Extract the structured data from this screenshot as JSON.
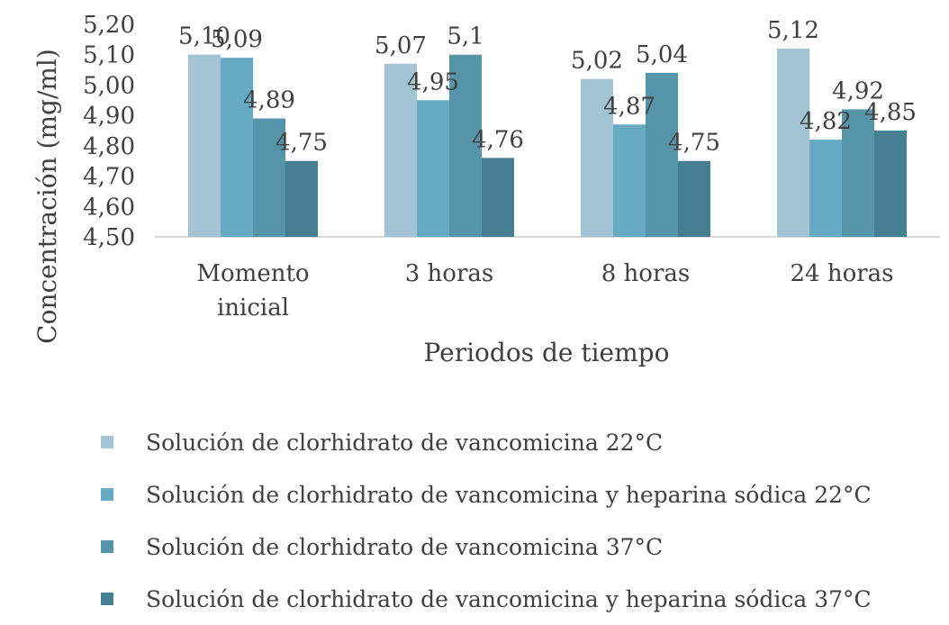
{
  "chart_data": {
    "type": "bar",
    "categories": [
      [
        "Momento",
        "inicial"
      ],
      [
        "3 horas"
      ],
      [
        "8 horas"
      ],
      [
        "24 horas"
      ]
    ],
    "series": [
      {
        "name": "Solución de clorhidrato de vancomicina 22°C",
        "color": "#a2c4d4",
        "values": [
          5.1,
          5.07,
          5.02,
          5.12
        ],
        "labels": [
          "5,10",
          "5,07",
          "5,02",
          "5,12"
        ]
      },
      {
        "name": "Solución de clorhidrato de vancomicina y heparina sódica 22°C",
        "color": "#66aac4",
        "values": [
          5.09,
          4.95,
          4.87,
          4.82
        ],
        "labels": [
          "5,09",
          "4,95",
          "4,87",
          "4,82"
        ]
      },
      {
        "name": "Solución de clorhidrato de vancomicina 37°C",
        "color": "#5695a9",
        "values": [
          4.89,
          5.1,
          5.04,
          4.92
        ],
        "labels": [
          "4,89",
          "5,1",
          "5,04",
          "4,92"
        ]
      },
      {
        "name": "Solución de clorhidrato de vancomicina y heparina sódica 37°C",
        "color": "#467f92",
        "values": [
          4.75,
          4.76,
          4.75,
          4.85
        ],
        "labels": [
          "4,75",
          "4,76",
          "4,75",
          "4,85"
        ]
      }
    ],
    "ylabel": "Concentración (mg/ml)",
    "xlabel": "Periodos de tiempo",
    "ylim": [
      4.5,
      5.2
    ],
    "yticks": [
      "4,50",
      "4,60",
      "4,70",
      "4,80",
      "4,90",
      "5,00",
      "5,10",
      "5,20"
    ],
    "grid": false,
    "legend_position": "bottom"
  }
}
